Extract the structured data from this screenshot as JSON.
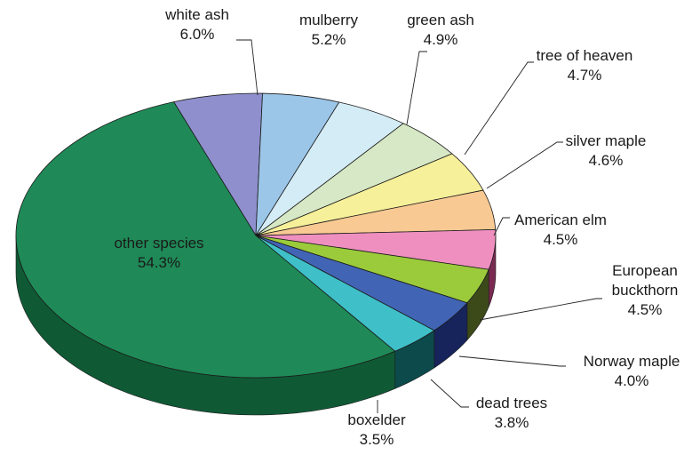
{
  "chart_data": {
    "type": "pie",
    "style": "3d",
    "slices": [
      {
        "label_lines": [
          "white ash"
        ],
        "pct_text": "6.0%",
        "value": 6.0,
        "color": "#8e8fcc",
        "side": "#5d5e9a"
      },
      {
        "label_lines": [
          "mulberry"
        ],
        "pct_text": "5.2%",
        "value": 5.2,
        "color": "#9cc6e8",
        "side": "#6a94b6"
      },
      {
        "label_lines": [
          "green ash"
        ],
        "pct_text": "4.9%",
        "value": 4.9,
        "color": "#d4ecf5",
        "side": "#9fb7c0"
      },
      {
        "label_lines": [
          "tree of heaven"
        ],
        "pct_text": "4.7%",
        "value": 4.7,
        "color": "#d6e8c5",
        "side": "#a1b390"
      },
      {
        "label_lines": [
          "silver maple"
        ],
        "pct_text": "4.6%",
        "value": 4.6,
        "color": "#f7f09a",
        "side": "#c1ba64"
      },
      {
        "label_lines": [
          "American elm"
        ],
        "pct_text": "4.5%",
        "value": 4.5,
        "color": "#f8c993",
        "side": "#c2935d"
      },
      {
        "label_lines": [
          "European",
          "buckthorn"
        ],
        "pct_text": "4.5%",
        "value": 4.5,
        "color": "#ee8fbf",
        "side": "#7a2a50"
      },
      {
        "label_lines": [
          "Norway maple"
        ],
        "pct_text": "4.0%",
        "value": 4.0,
        "color": "#9bcb3b",
        "side": "#3c4a1a"
      },
      {
        "label_lines": [
          "dead trees"
        ],
        "pct_text": "3.8%",
        "value": 3.8,
        "color": "#4264b5",
        "side": "#17245c"
      },
      {
        "label_lines": [
          "boxelder"
        ],
        "pct_text": "3.5%",
        "value": 3.5,
        "color": "#3fbfc8",
        "side": "#0c4a4c"
      },
      {
        "label_lines": [
          "other species"
        ],
        "pct_text": "54.3%",
        "value": 54.3,
        "color": "#1f8a57",
        "side": "#0f5a35"
      }
    ]
  }
}
